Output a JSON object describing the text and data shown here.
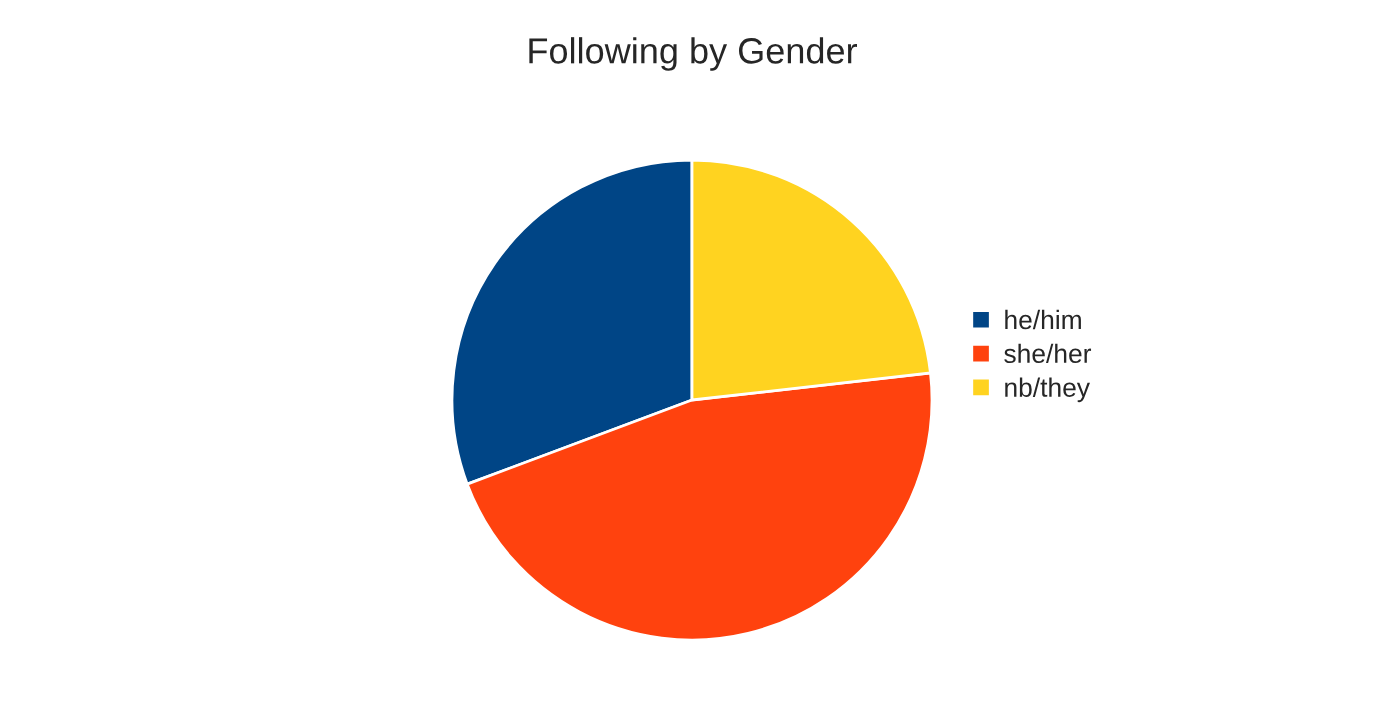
{
  "chart_data": {
    "type": "pie",
    "title": "Following by Gender",
    "categories": [
      "he/him",
      "she/her",
      "nb/they"
    ],
    "values": [
      30.7,
      46.1,
      23.2
    ],
    "colors": [
      "#004586",
      "#ff420e",
      "#ffd320"
    ],
    "legend": "right"
  }
}
